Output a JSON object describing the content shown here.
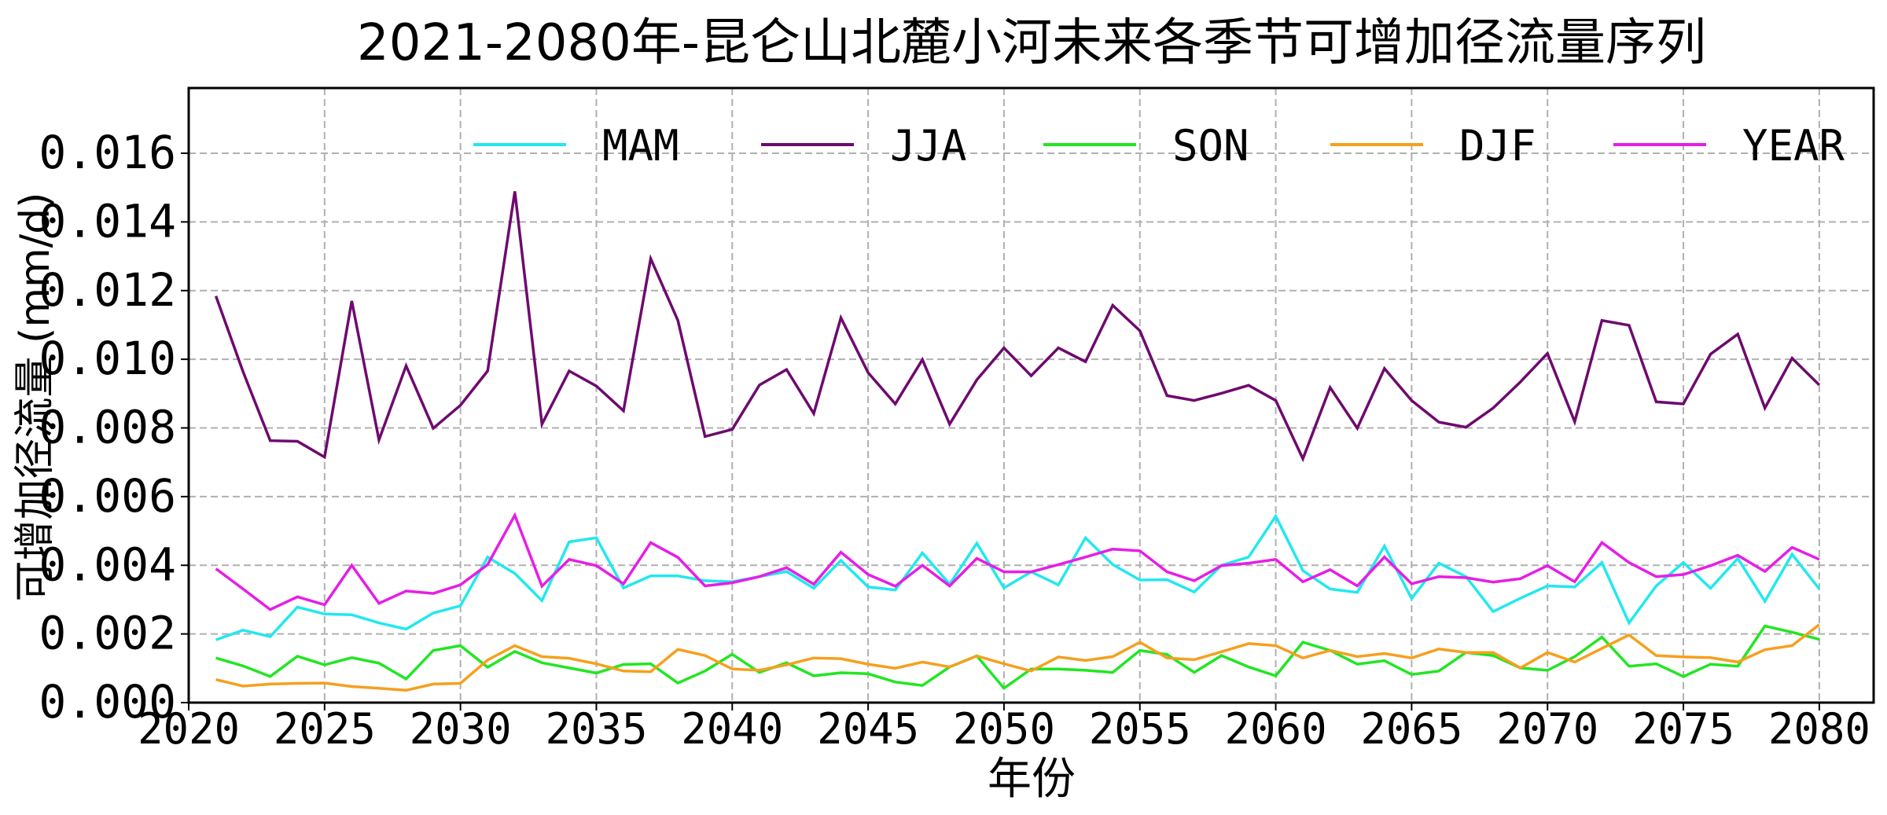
{
  "chart_data": {
    "type": "line",
    "title": "2021-2080年-昆仑山北麓小河未来各季节可增加径流量序列",
    "xlabel": "年份",
    "ylabel": "可增加径流量 (mm/d)",
    "xlim": [
      2020,
      2082
    ],
    "ylim": [
      0,
      0.0179
    ],
    "xticks": [
      "2020",
      "2025",
      "2030",
      "2035",
      "2040",
      "2045",
      "2050",
      "2055",
      "2060",
      "2065",
      "2070",
      "2075",
      "2080"
    ],
    "yticks": [
      "0.000",
      "0.002",
      "0.004",
      "0.006",
      "0.008",
      "0.010",
      "0.012",
      "0.014",
      "0.016"
    ],
    "grid": true,
    "legend_position": "top",
    "x_start": 2021,
    "series": [
      {
        "name": "MAM",
        "color": "#22e8ee",
        "values": [
          0.00183,
          0.00211,
          0.00192,
          0.00278,
          0.00258,
          0.00256,
          0.00232,
          0.00214,
          0.00261,
          0.00282,
          0.00424,
          0.00376,
          0.00297,
          0.00468,
          0.0048,
          0.00334,
          0.00369,
          0.00369,
          0.00355,
          0.00352,
          0.00367,
          0.00382,
          0.00333,
          0.00414,
          0.00337,
          0.00328,
          0.00436,
          0.00345,
          0.00464,
          0.00334,
          0.00381,
          0.00343,
          0.0048,
          0.00402,
          0.00357,
          0.00358,
          0.00322,
          0.004,
          0.00424,
          0.00543,
          0.00384,
          0.00331,
          0.00321,
          0.00456,
          0.00303,
          0.00406,
          0.00367,
          0.00265,
          0.00304,
          0.0034,
          0.00337,
          0.00408,
          0.00232,
          0.0034,
          0.00408,
          0.00333,
          0.0042,
          0.00295,
          0.00432,
          0.00331
        ]
      },
      {
        "name": "JJA",
        "color": "#6e0a6e",
        "values": [
          0.01184,
          0.00964,
          0.00763,
          0.00761,
          0.00715,
          0.0117,
          0.00765,
          0.00981,
          0.00799,
          0.00866,
          0.00966,
          0.01489,
          0.00811,
          0.00966,
          0.00922,
          0.0085,
          0.01293,
          0.01113,
          0.00775,
          0.00796,
          0.00925,
          0.0097,
          0.00842,
          0.01121,
          0.00961,
          0.0087,
          0.00999,
          0.00811,
          0.0094,
          0.01033,
          0.00952,
          0.01033,
          0.00993,
          0.01157,
          0.01083,
          0.00894,
          0.0088,
          0.00901,
          0.00924,
          0.0088,
          0.0071,
          0.00918,
          0.00799,
          0.00973,
          0.0088,
          0.00817,
          0.00802,
          0.00858,
          0.00934,
          0.01017,
          0.00818,
          0.01113,
          0.01099,
          0.00876,
          0.0087,
          0.01015,
          0.01073,
          0.00858,
          0.01003,
          0.00925
        ]
      },
      {
        "name": "SON",
        "color": "#22e622",
        "values": [
          0.0013,
          0.00107,
          0.00076,
          0.00135,
          0.0011,
          0.00131,
          0.00115,
          0.00069,
          0.00152,
          0.00166,
          0.00103,
          0.00149,
          0.00116,
          0.00101,
          0.00086,
          0.00111,
          0.00113,
          0.00057,
          0.00092,
          0.00141,
          0.00088,
          0.00116,
          0.00078,
          0.00087,
          0.00084,
          0.0006,
          0.0005,
          0.00104,
          0.00136,
          0.00042,
          0.00098,
          0.00098,
          0.00094,
          0.00088,
          0.00152,
          0.0014,
          0.00088,
          0.00137,
          0.00104,
          0.00078,
          0.00176,
          0.00152,
          0.00112,
          0.00122,
          0.00082,
          0.00092,
          0.00146,
          0.00137,
          0.00101,
          0.00094,
          0.00134,
          0.00191,
          0.00106,
          0.00113,
          0.00076,
          0.00112,
          0.00106,
          0.00223,
          0.00205,
          0.00184
        ]
      },
      {
        "name": "DJF",
        "color": "#f5a01e",
        "values": [
          0.00067,
          0.00048,
          0.00054,
          0.00056,
          0.00057,
          0.00047,
          0.00042,
          0.00036,
          0.00054,
          0.00056,
          0.00124,
          0.00166,
          0.00134,
          0.00129,
          0.00113,
          0.00092,
          0.0009,
          0.00155,
          0.00137,
          0.00098,
          0.00094,
          0.0011,
          0.0013,
          0.00128,
          0.00112,
          0.001,
          0.00118,
          0.00104,
          0.00136,
          0.00113,
          0.00092,
          0.00133,
          0.00123,
          0.00134,
          0.00176,
          0.0013,
          0.00125,
          0.00148,
          0.00172,
          0.00166,
          0.0013,
          0.00152,
          0.00134,
          0.00143,
          0.0013,
          0.00156,
          0.00146,
          0.00146,
          0.00101,
          0.00146,
          0.00118,
          0.00158,
          0.00197,
          0.00137,
          0.00133,
          0.00131,
          0.00118,
          0.00154,
          0.00166,
          0.00227
        ]
      },
      {
        "name": "YEAR",
        "color": "#e61ee6",
        "values": [
          0.0039,
          0.00331,
          0.00271,
          0.00308,
          0.00285,
          0.004,
          0.00289,
          0.00325,
          0.00318,
          0.00343,
          0.00402,
          0.00546,
          0.00339,
          0.00417,
          0.00399,
          0.00346,
          0.00466,
          0.00423,
          0.0034,
          0.00349,
          0.00367,
          0.00393,
          0.00345,
          0.00438,
          0.00373,
          0.00339,
          0.004,
          0.0034,
          0.0042,
          0.00381,
          0.00381,
          0.00402,
          0.00424,
          0.00447,
          0.00442,
          0.00381,
          0.00355,
          0.00399,
          0.00406,
          0.00417,
          0.00352,
          0.00387,
          0.0034,
          0.00424,
          0.00346,
          0.00367,
          0.00364,
          0.00351,
          0.00361,
          0.00399,
          0.00352,
          0.00466,
          0.00408,
          0.00367,
          0.00373,
          0.00399,
          0.00429,
          0.00382,
          0.00452,
          0.00417
        ]
      }
    ]
  }
}
